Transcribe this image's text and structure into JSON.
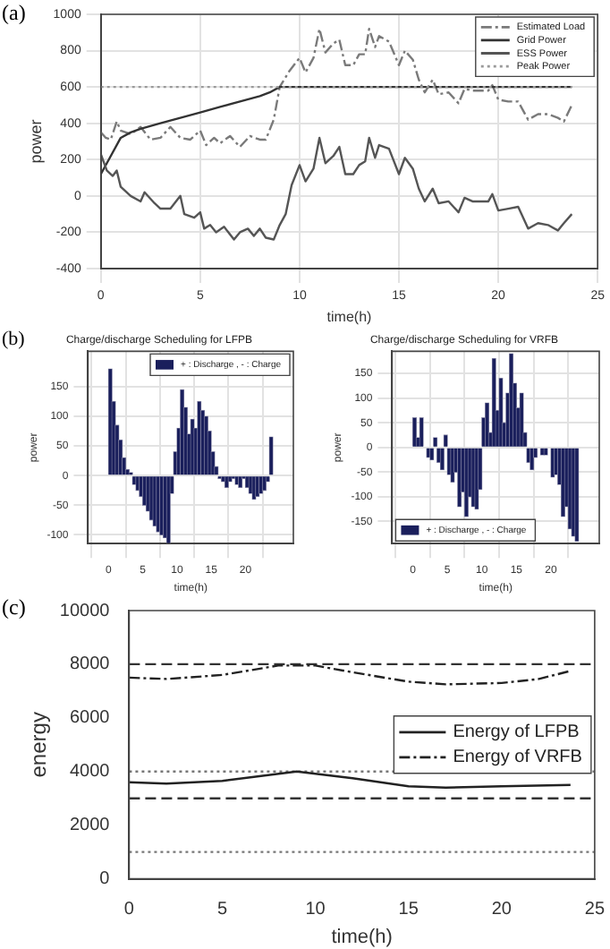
{
  "chart_data": [
    {
      "type": "line",
      "annotations": [
        "(a)"
      ],
      "xlabel": "time(h)",
      "ylabel": "power",
      "xlim": [
        0,
        25
      ],
      "xticks": [
        0,
        5,
        10,
        15,
        20,
        25
      ],
      "ylim": [
        -400,
        1000
      ],
      "yticks": [
        -400,
        -200,
        0,
        200,
        400,
        600,
        800,
        1000
      ],
      "grid": true,
      "legend": "top right",
      "series": [
        {
          "name": "Estimated Load",
          "color": "#7a7a7a",
          "line_style": "dashdot",
          "x": [
            0,
            0.25,
            0.5,
            0.8,
            1,
            1.5,
            2,
            2.5,
            3,
            3.5,
            4,
            4.5,
            5,
            5.3,
            5.7,
            6,
            6.5,
            7,
            7.5,
            8,
            8.3,
            8.7,
            9,
            9.5,
            10,
            10.3,
            10.7,
            11,
            11.3,
            11.7,
            12,
            12.3,
            12.7,
            13,
            13.3,
            13.5,
            13.8,
            14,
            14.5,
            15,
            15.3,
            15.7,
            16,
            16.3,
            16.7,
            17,
            17.5,
            18,
            18.3,
            18.7,
            19,
            19.5,
            19.7,
            20,
            20.5,
            21,
            21.5,
            22,
            22.5,
            23,
            23.3,
            23.7
          ],
          "values": [
            350,
            320,
            310,
            410,
            360,
            340,
            380,
            310,
            320,
            380,
            320,
            310,
            360,
            280,
            320,
            290,
            330,
            270,
            330,
            310,
            310,
            420,
            600,
            690,
            760,
            680,
            760,
            920,
            790,
            840,
            860,
            720,
            720,
            780,
            780,
            920,
            820,
            880,
            850,
            720,
            800,
            750,
            640,
            570,
            640,
            560,
            570,
            510,
            590,
            580,
            580,
            580,
            610,
            530,
            520,
            520,
            420,
            450,
            450,
            430,
            410,
            500
          ]
        },
        {
          "name": "Grid Power",
          "color": "#333333",
          "line_style": "solid",
          "x": [
            0,
            0.5,
            1,
            1.5,
            2,
            3,
            4,
            5,
            6,
            7,
            8,
            8.5,
            9,
            23.7
          ],
          "values": [
            120,
            220,
            320,
            350,
            370,
            400,
            430,
            460,
            490,
            520,
            550,
            570,
            600,
            600
          ]
        },
        {
          "name": "ESS Power",
          "color": "#555555",
          "line_style": "solid",
          "x": [
            0,
            0.3,
            0.6,
            0.8,
            1,
            1.5,
            2,
            2.2,
            2.7,
            3,
            3.5,
            4,
            4.2,
            4.7,
            5,
            5.2,
            5.5,
            5.8,
            6.2,
            6.7,
            7,
            7.4,
            7.7,
            8,
            8.3,
            8.7,
            9,
            9.3,
            9.6,
            10,
            10.3,
            10.7,
            11,
            11.3,
            11.7,
            12,
            12.3,
            12.7,
            13,
            13.3,
            13.5,
            13.8,
            14,
            14.5,
            15,
            15.3,
            15.7,
            16,
            16.3,
            16.7,
            17,
            17.5,
            18,
            18.3,
            18.7,
            19,
            19.5,
            19.7,
            20,
            20.5,
            21,
            21.5,
            22,
            22.5,
            23,
            23.3,
            23.7
          ],
          "values": [
            230,
            140,
            110,
            140,
            50,
            0,
            -30,
            20,
            -40,
            -70,
            -70,
            0,
            -100,
            -120,
            -90,
            -180,
            -160,
            -200,
            -170,
            -240,
            -200,
            -180,
            -220,
            -180,
            -230,
            -240,
            -160,
            -100,
            60,
            170,
            80,
            150,
            320,
            180,
            220,
            270,
            120,
            120,
            170,
            190,
            320,
            210,
            280,
            260,
            120,
            210,
            150,
            40,
            -30,
            40,
            -40,
            -30,
            -90,
            -10,
            -30,
            -30,
            -30,
            10,
            -80,
            -70,
            -60,
            -180,
            -150,
            -160,
            -190,
            -150,
            -100
          ]
        },
        {
          "name": "Peak Power",
          "color": "#9a9a9a",
          "line_style": "dotted",
          "x": [
            0,
            23.7
          ],
          "values": [
            600,
            600
          ]
        }
      ]
    },
    {
      "type": "bar",
      "annotations": [
        "(b)"
      ],
      "title": "Charge/discharge Scheduling for LFPB",
      "xlabel": "time(h)",
      "ylabel": "power",
      "xlim": [
        0,
        24
      ],
      "xticks": [
        0,
        5,
        10,
        15,
        20
      ],
      "ylim": [
        -115,
        210
      ],
      "yticks": [
        -100,
        -50,
        0,
        50,
        100,
        150
      ],
      "grid": true,
      "legend": "top right",
      "series": [
        {
          "name": "+ : Discharge , - : Charge",
          "color": "#1a1f5c",
          "x": [
            0.25,
            0.75,
            1.25,
            1.75,
            2.25,
            2.75,
            3.25,
            3.75,
            4.25,
            4.75,
            5.25,
            5.75,
            6.25,
            6.75,
            7.25,
            7.75,
            8.25,
            8.75,
            9.25,
            9.75,
            10.25,
            10.75,
            11.25,
            11.75,
            12.25,
            12.75,
            13.25,
            13.75,
            14.25,
            14.75,
            15.25,
            15.75,
            16.25,
            16.75,
            17.25,
            17.75,
            18.25,
            18.75,
            19.25,
            19.75,
            20.25,
            20.75,
            21.25,
            21.75,
            22.25,
            22.75,
            23.25,
            23.75
          ],
          "values": [
            180,
            125,
            85,
            60,
            30,
            10,
            5,
            -15,
            -25,
            -35,
            -50,
            -60,
            -75,
            -85,
            -95,
            -100,
            -105,
            -115,
            -30,
            40,
            80,
            145,
            115,
            70,
            95,
            80,
            125,
            110,
            100,
            75,
            40,
            15,
            -5,
            -10,
            -20,
            -10,
            -5,
            -15,
            -20,
            -5,
            -20,
            -30,
            -40,
            -35,
            -30,
            -25,
            -10,
            65
          ]
        }
      ]
    },
    {
      "type": "bar",
      "title": "Charge/discharge Scheduling for VRFB",
      "xlabel": "time(h)",
      "ylabel": "power",
      "xlim": [
        0,
        24
      ],
      "xticks": [
        0,
        5,
        10,
        15,
        20
      ],
      "ylim": [
        -195,
        195
      ],
      "yticks": [
        -150,
        -100,
        -50,
        0,
        50,
        100,
        150
      ],
      "grid": true,
      "legend": "bottom left",
      "series": [
        {
          "name": "+ : Discharge , - : Charge",
          "color": "#1a1f5c",
          "x": [
            0.25,
            0.75,
            1.25,
            1.75,
            2.25,
            2.75,
            3.25,
            3.75,
            4.25,
            4.75,
            5.25,
            5.75,
            6.25,
            6.75,
            7.25,
            7.75,
            8.25,
            8.75,
            9.25,
            9.75,
            10.25,
            10.75,
            11.25,
            11.75,
            12.25,
            12.75,
            13.25,
            13.75,
            14.25,
            14.75,
            15.25,
            15.75,
            16.25,
            16.75,
            17.25,
            17.75,
            18.25,
            18.75,
            19.25,
            19.75,
            20.25,
            20.75,
            21.25,
            21.75,
            22.25,
            22.75,
            23.25,
            23.75
          ],
          "values": [
            60,
            20,
            60,
            0,
            -20,
            -25,
            20,
            -30,
            -45,
            25,
            -55,
            -70,
            -50,
            -120,
            -90,
            -140,
            -100,
            -120,
            -125,
            -85,
            60,
            90,
            30,
            180,
            75,
            140,
            50,
            110,
            190,
            130,
            80,
            110,
            30,
            -30,
            -45,
            -20,
            0,
            -15,
            -15,
            0,
            -60,
            -55,
            -75,
            -140,
            -120,
            -165,
            -180,
            -190
          ]
        }
      ]
    },
    {
      "type": "line",
      "annotations": [
        "(c)"
      ],
      "xlabel": "time(h)",
      "ylabel": "energy",
      "xlim": [
        0,
        25
      ],
      "xticks": [
        0,
        5,
        10,
        15,
        20,
        25
      ],
      "ylim": [
        0,
        10000
      ],
      "yticks": [
        0,
        2000,
        4000,
        6000,
        8000,
        10000
      ],
      "legend": "right",
      "grid": false,
      "ref_lines": [
        {
          "axis": "y",
          "value": 8000,
          "color": "#333333",
          "line_style": "dashed"
        },
        {
          "axis": "y",
          "value": 3000,
          "color": "#333333",
          "line_style": "dashed"
        },
        {
          "axis": "y",
          "value": 4000,
          "color": "#777777",
          "line_style": "dotted"
        },
        {
          "axis": "y",
          "value": 1000,
          "color": "#777777",
          "line_style": "dotted"
        }
      ],
      "series": [
        {
          "name": "Energy of LFPB",
          "color": "#222222",
          "line_style": "solid",
          "x": [
            0,
            2,
            5,
            9,
            12,
            15,
            17,
            20,
            23.7
          ],
          "values": [
            3600,
            3550,
            3650,
            4000,
            3750,
            3450,
            3400,
            3450,
            3500
          ]
        },
        {
          "name": "Energy of VRFB",
          "color": "#222222",
          "line_style": "dashdot",
          "x": [
            0,
            2,
            5,
            8,
            10,
            12,
            15,
            17,
            20,
            22,
            23.7
          ],
          "values": [
            7500,
            7450,
            7600,
            7950,
            7950,
            7700,
            7350,
            7250,
            7300,
            7450,
            7750
          ]
        }
      ]
    }
  ]
}
